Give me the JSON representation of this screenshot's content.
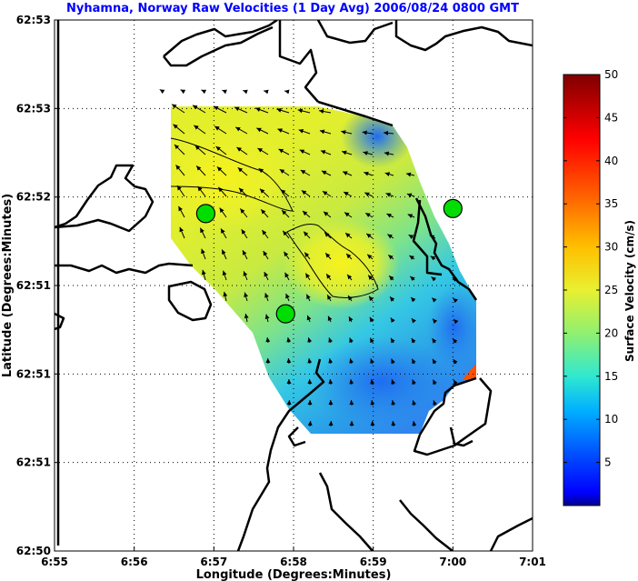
{
  "chart_data": {
    "type": "heatmap",
    "title": "Nyhamna, Norway Raw Velocities (1 Day Avg) 2006/08/24 0800 GMT",
    "xlabel": "Longitude (Degrees:Minutes)",
    "ylabel": "Latitude (Degrees:Minutes)",
    "x_ticks": [
      "6:55",
      "6:56",
      "6:57",
      "6:58",
      "6:59",
      "7:00",
      "7:01"
    ],
    "y_ticks": [
      "62:53",
      "62:53",
      "62:52",
      "62:51",
      "62:51",
      "62:51",
      "62:50"
    ],
    "grid": true,
    "colorbar": {
      "label": "Surface Velocity (cm/s)",
      "ticks": [
        "50",
        "45",
        "40",
        "35",
        "30",
        "25",
        "20",
        "15",
        "10",
        "5"
      ],
      "range": [
        0,
        50
      ],
      "colormap": "jet"
    },
    "markers": [
      {
        "lon": 6.9483,
        "lat": 62.8575,
        "color": "#00dd00"
      },
      {
        "lon": 6.965,
        "lat": 62.8474,
        "color": "#00dd00"
      },
      {
        "lon": 7.0,
        "lat": 62.858,
        "color": "#00dd00"
      }
    ],
    "colors": {
      "title": "#0000ff",
      "coast": "#000000",
      "grid": "#000000"
    }
  }
}
